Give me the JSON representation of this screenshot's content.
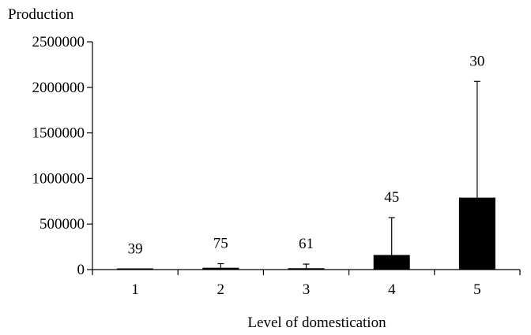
{
  "chart_data": {
    "type": "bar",
    "ylabel": "Production",
    "xlabel": "Level of domestication",
    "categories": [
      "1",
      "2",
      "3",
      "4",
      "5"
    ],
    "values": [
      2000,
      20000,
      15000,
      160000,
      790000
    ],
    "error_upper": [
      5000,
      65000,
      60000,
      570000,
      2065000
    ],
    "data_labels": [
      "39",
      "75",
      "61",
      "45",
      "30"
    ],
    "ylim": [
      0,
      2500000
    ],
    "y_ticks": [
      0,
      500000,
      1000000,
      1500000,
      2000000,
      2500000
    ],
    "y_tick_labels": [
      "0",
      "500000",
      "1000000",
      "1500000",
      "2000000",
      "2500000"
    ],
    "bar_color": "#000000",
    "grid": false,
    "legend": "none"
  }
}
